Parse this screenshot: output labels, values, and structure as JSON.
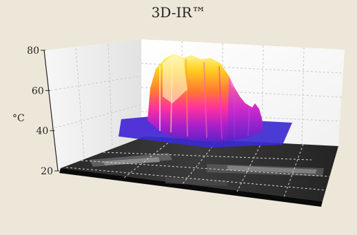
{
  "app": {
    "title": "3D-IR™"
  },
  "chart_data": {
    "type": "surface3d",
    "title": "3D-IR™",
    "xlabel": "",
    "ylabel": "°C",
    "zlim": [
      20,
      80
    ],
    "ticks": [
      "80",
      "60",
      "40",
      "20"
    ],
    "tick_values": [
      80,
      60,
      40,
      20
    ],
    "grid": true,
    "colormap": [
      "#2a1a9a",
      "#5a22c8",
      "#b020c8",
      "#ff30a0",
      "#ff7a30",
      "#ffd020",
      "#fff8a0"
    ],
    "colors": {
      "background": "#ede7d9",
      "floor": "#1e1e1e",
      "plane_low": "#3a2ad0"
    }
  }
}
